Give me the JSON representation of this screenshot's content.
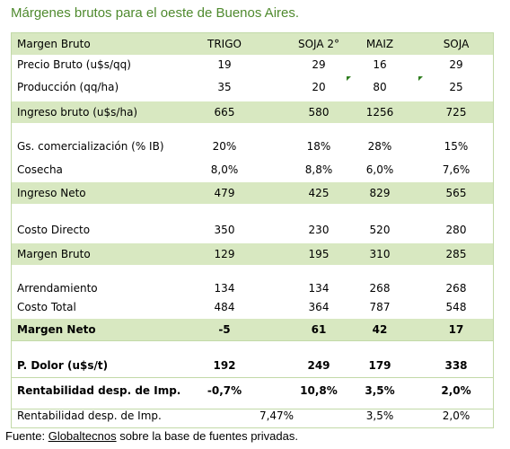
{
  "title": "Márgenes brutos para el oeste de Buenos Aires.",
  "header": {
    "label": "Margen Bruto",
    "cols": [
      "TRIGO",
      "SOJA 2°",
      "MAIZ",
      "SOJA"
    ]
  },
  "rows": {
    "precio": {
      "label": "Precio Bruto (u$s/qq)",
      "values": [
        "19",
        "29",
        "16",
        "29"
      ]
    },
    "produccion": {
      "label": "Producción (qq/ha)",
      "values": [
        "35",
        "20",
        "80",
        "25"
      ]
    },
    "ingreso_bruto": {
      "label": "Ingreso bruto (u$s/ha)",
      "values": [
        "665",
        "580",
        "1256",
        "725"
      ]
    },
    "gs_com": {
      "label": "Gs. comercialización (% IB)",
      "values": [
        "20%",
        "18%",
        "28%",
        "15%"
      ]
    },
    "cosecha": {
      "label": "Cosecha",
      "values": [
        "8,0%",
        "8,8%",
        "6,0%",
        "7,6%"
      ]
    },
    "ingreso_neto": {
      "label": "Ingreso Neto",
      "values": [
        "479",
        "425",
        "829",
        "565"
      ]
    },
    "costo_directo": {
      "label": "Costo Directo",
      "values": [
        "350",
        "230",
        "520",
        "280"
      ]
    },
    "margen_bruto": {
      "label": "Margen Bruto",
      "values": [
        "129",
        "195",
        "310",
        "285"
      ]
    },
    "arrendamiento": {
      "label": "Arrendamiento",
      "values": [
        "134",
        "134",
        "268",
        "268"
      ]
    },
    "costo_total": {
      "label": "Costo Total",
      "values": [
        "484",
        "364",
        "787",
        "548"
      ]
    },
    "margen_neto": {
      "label": "Margen Neto",
      "values": [
        "-5",
        "61",
        "42",
        "17"
      ]
    },
    "p_dolor": {
      "label": "P. Dolor (u$s/t)",
      "values": [
        "192",
        "249",
        "179",
        "338"
      ]
    },
    "rentabilidad": {
      "label": "Rentabilidad desp. de Imp.",
      "values": [
        "-0,7%",
        "10,8%",
        "3,5%",
        "2,0%"
      ]
    },
    "rentabilidad2": {
      "label": "Rentabilidad desp. de Imp.",
      "combined": "7,47%",
      "values": [
        "3,5%",
        "2,0%"
      ]
    }
  },
  "source": {
    "prefix": "Fuente: ",
    "brand": "Globaltecnos",
    "rest": " sobre la base de fuentes privadas."
  },
  "colors": {
    "title": "#4f8a2e",
    "band": "#d8e8c1",
    "border": "#c2d9a8"
  }
}
